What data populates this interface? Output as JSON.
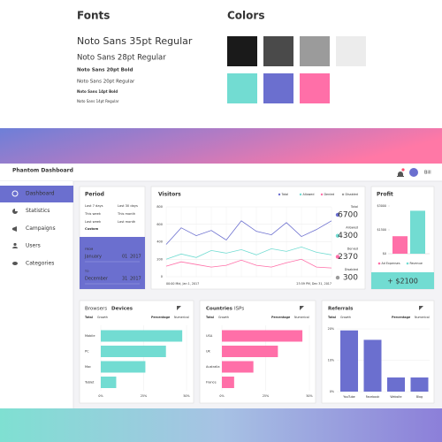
{
  "fonts": {
    "title": "Fonts",
    "samples": [
      "Noto Sans 35pt Regular",
      "Noto Sans 28pt Regular",
      "Noto Sans 20pt Bold",
      "Noto Sans 20pt Regular",
      "Noto Sans 14pt Bold",
      "Noto Sans 14pt Regular"
    ]
  },
  "colors": {
    "title": "Colors",
    "swatches": [
      "#1a1a1a",
      "#4a4a4a",
      "#9b9b9b",
      "#ececec",
      "#72dcd2",
      "#6b6fcf",
      "#ff6fa8"
    ]
  },
  "header": {
    "title": "Phantom Dashboard",
    "user": "Bill"
  },
  "sidebar": {
    "items": [
      "Dashboard",
      "Statistics",
      "Campaigns",
      "Users",
      "Categories"
    ]
  },
  "period": {
    "title": "Period",
    "options": [
      "Last 7 days",
      "Last 30 days",
      "This week",
      "This month",
      "Last week",
      "Last month",
      "Custom"
    ],
    "from": {
      "label": "FROM",
      "month": "January",
      "day": "01",
      "year": "2017"
    },
    "to": {
      "label": "TO",
      "month": "December",
      "day": "31",
      "year": "2017"
    }
  },
  "visitors": {
    "title": "Visitors",
    "type": "line",
    "x_start": "00:00 Mid, Jan 1, 2017",
    "x_end": "23:59 PM, Dec 31, 2017",
    "ylim": [
      0,
      800
    ],
    "yticks": [
      0,
      200,
      400,
      600,
      800
    ],
    "grid": true,
    "series": [
      {
        "name": "Total",
        "color": "#6b6fcf",
        "total": 6700,
        "values": [
          370,
          560,
          470,
          530,
          420,
          640,
          520,
          480,
          620,
          460,
          540,
          640
        ]
      },
      {
        "name": "Allowed",
        "color": "#72dcd2",
        "total": 4300,
        "values": [
          200,
          260,
          220,
          300,
          270,
          310,
          250,
          320,
          290,
          340,
          280,
          250
        ]
      },
      {
        "name": "Denied",
        "color": "#ff6fa8",
        "total": 2370,
        "values": [
          120,
          170,
          140,
          110,
          130,
          190,
          130,
          110,
          160,
          200,
          110,
          100
        ]
      },
      {
        "name": "Disabled",
        "color": "#9b9b9b",
        "total": 300
      }
    ]
  },
  "profit": {
    "title": "Profit",
    "type": "bar",
    "ylim": [
      0,
      3000
    ],
    "yticks": [
      {
        "value": 0,
        "label": "$0"
      },
      {
        "value": 1500,
        "label": "$1500"
      },
      {
        "value": 3000,
        "label": "$3000"
      }
    ],
    "series": [
      {
        "name": "Ad Expenses",
        "color": "#ff6fa8",
        "value": 1100
      },
      {
        "name": "Revenue",
        "color": "#72dcd2",
        "value": 2700
      }
    ],
    "button": "+ $2100"
  },
  "devices": {
    "tabs": [
      "Browsers",
      "Devices"
    ],
    "columns": [
      "Total",
      "Growth"
    ],
    "modes": [
      "Percentage",
      "Numerical"
    ],
    "type": "bar",
    "orientation": "horizontal",
    "color": "#72dcd2",
    "categories": [
      "Mobile",
      "PC",
      "Mac",
      "Tablet"
    ],
    "values": [
      47.5,
      38,
      26,
      9
    ],
    "xlim": [
      0,
      50
    ],
    "xticks": [
      {
        "value": 0,
        "label": "0%"
      },
      {
        "value": 25,
        "label": "25%"
      },
      {
        "value": 50,
        "label": "50%"
      }
    ]
  },
  "countries": {
    "tabs": [
      "Countries",
      "ISPs"
    ],
    "columns": [
      "Total",
      "Growth"
    ],
    "modes": [
      "Percentage",
      "Numerical"
    ],
    "type": "bar",
    "orientation": "horizontal",
    "color": "#ff6fa8",
    "categories": [
      "USA",
      "UK",
      "Australia",
      "France"
    ],
    "values": [
      46,
      32,
      18,
      7
    ],
    "xlim": [
      0,
      50
    ],
    "xticks": [
      {
        "value": 0,
        "label": "0%"
      },
      {
        "value": 25,
        "label": "25%"
      },
      {
        "value": 50,
        "label": "50%"
      }
    ]
  },
  "referrals": {
    "title": "Referrals",
    "columns": [
      "Total",
      "Growth"
    ],
    "modes": [
      "Percentage",
      "Numerical"
    ],
    "type": "bar",
    "orientation": "vertical",
    "color": "#6b6fcf",
    "categories": [
      "YouTube",
      "Facebook",
      "Website",
      "Blog"
    ],
    "values": [
      19.5,
      16.5,
      4.5,
      4.5
    ],
    "ylim": [
      0,
      20
    ],
    "yticks": [
      {
        "value": 0,
        "label": "0%"
      },
      {
        "value": 10,
        "label": "10%"
      },
      {
        "value": 20,
        "label": "20%"
      }
    ]
  }
}
